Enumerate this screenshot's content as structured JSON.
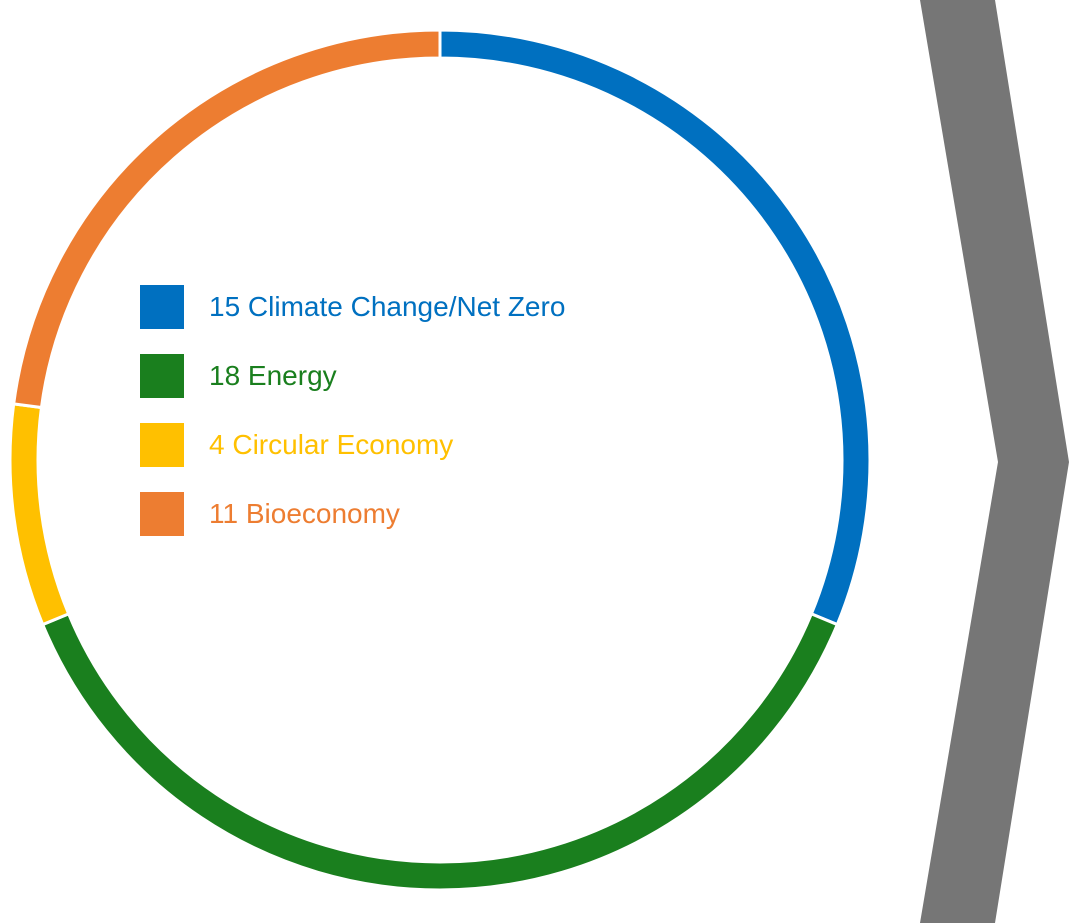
{
  "chart_data": {
    "type": "pie",
    "style": "donut",
    "start_angle": "top",
    "direction": "clockwise",
    "legend_position": "center",
    "slices": [
      {
        "value": 15,
        "label": "Climate Change/Net Zero",
        "color": "#0070C0"
      },
      {
        "value": 18,
        "label": "Energy",
        "color": "#1A7F1E"
      },
      {
        "value": 4,
        "label": "Circular Economy",
        "color": "#FFC000"
      },
      {
        "value": 11,
        "label": "Bioeconomy",
        "color": "#ED7D31"
      }
    ]
  },
  "legend": {
    "items": [
      {
        "text": "15 Climate Change/Net Zero",
        "color": "#0070C0"
      },
      {
        "text": "18 Energy",
        "color": "#1A7F1E"
      },
      {
        "text": "4 Circular Economy",
        "color": "#FFC000"
      },
      {
        "text": "11 Bioeconomy",
        "color": "#ED7D31"
      }
    ]
  },
  "decor": {
    "arrow_icon": "chevron-right-icon",
    "arrow_color": "#767676"
  }
}
